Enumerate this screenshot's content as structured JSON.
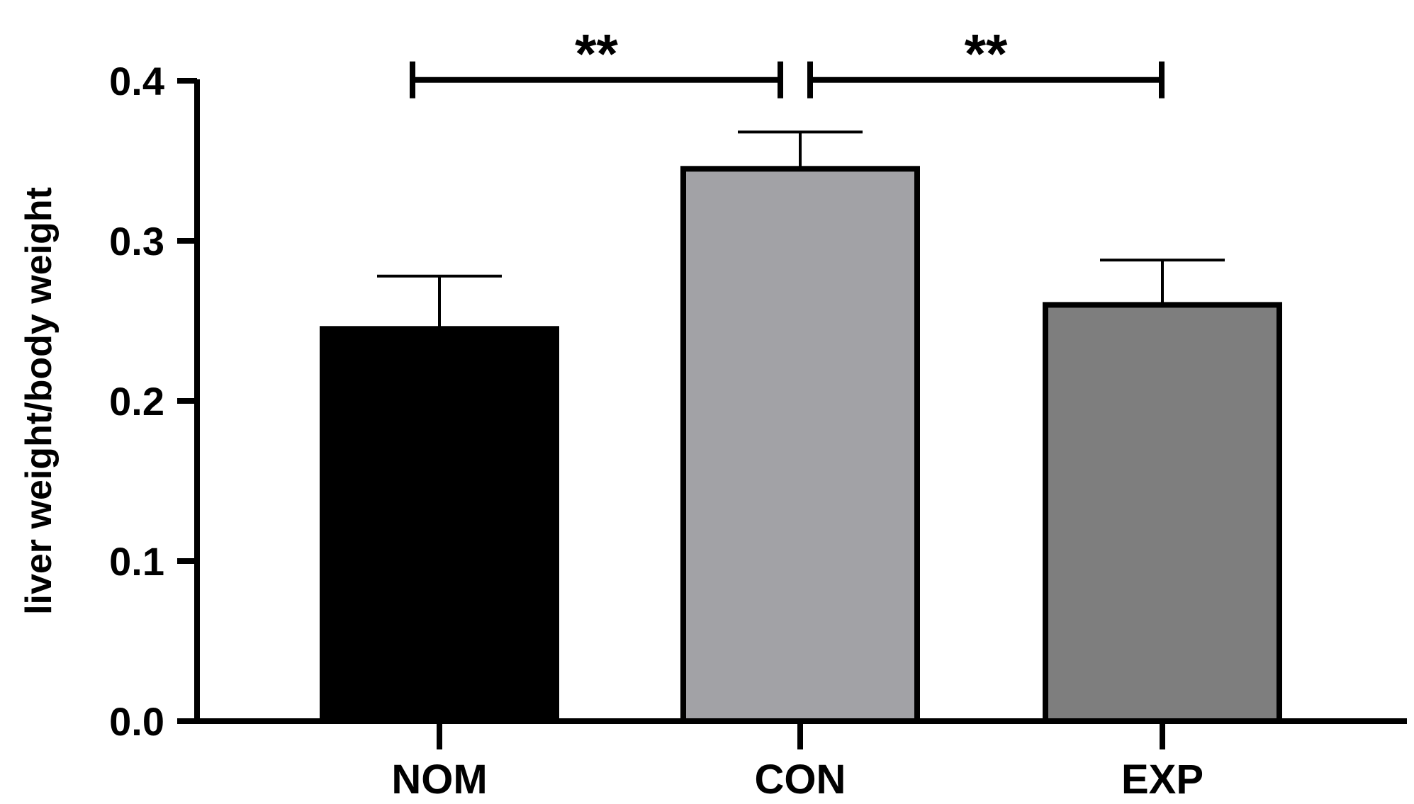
{
  "chart_data": {
    "type": "bar",
    "title": "",
    "xlabel": "",
    "ylabel": "liver weight/body weight",
    "ylim": [
      0,
      0.4
    ],
    "yticks": [
      "0.0",
      "0.1",
      "0.2",
      "0.3",
      "0.4"
    ],
    "grid": false,
    "categories": [
      "NOM",
      "CON",
      "EXP"
    ],
    "values": [
      0.245,
      0.345,
      0.26
    ],
    "error_upper": [
      0.278,
      0.368,
      0.288
    ],
    "bar_colors": [
      "#000000",
      "#a2a2a6",
      "#7e7e7e"
    ],
    "significance": [
      {
        "from": "NOM",
        "to": "CON",
        "label": "**",
        "level": 0.405
      },
      {
        "from": "CON",
        "to": "EXP",
        "label": "**",
        "level": 0.405
      }
    ]
  }
}
